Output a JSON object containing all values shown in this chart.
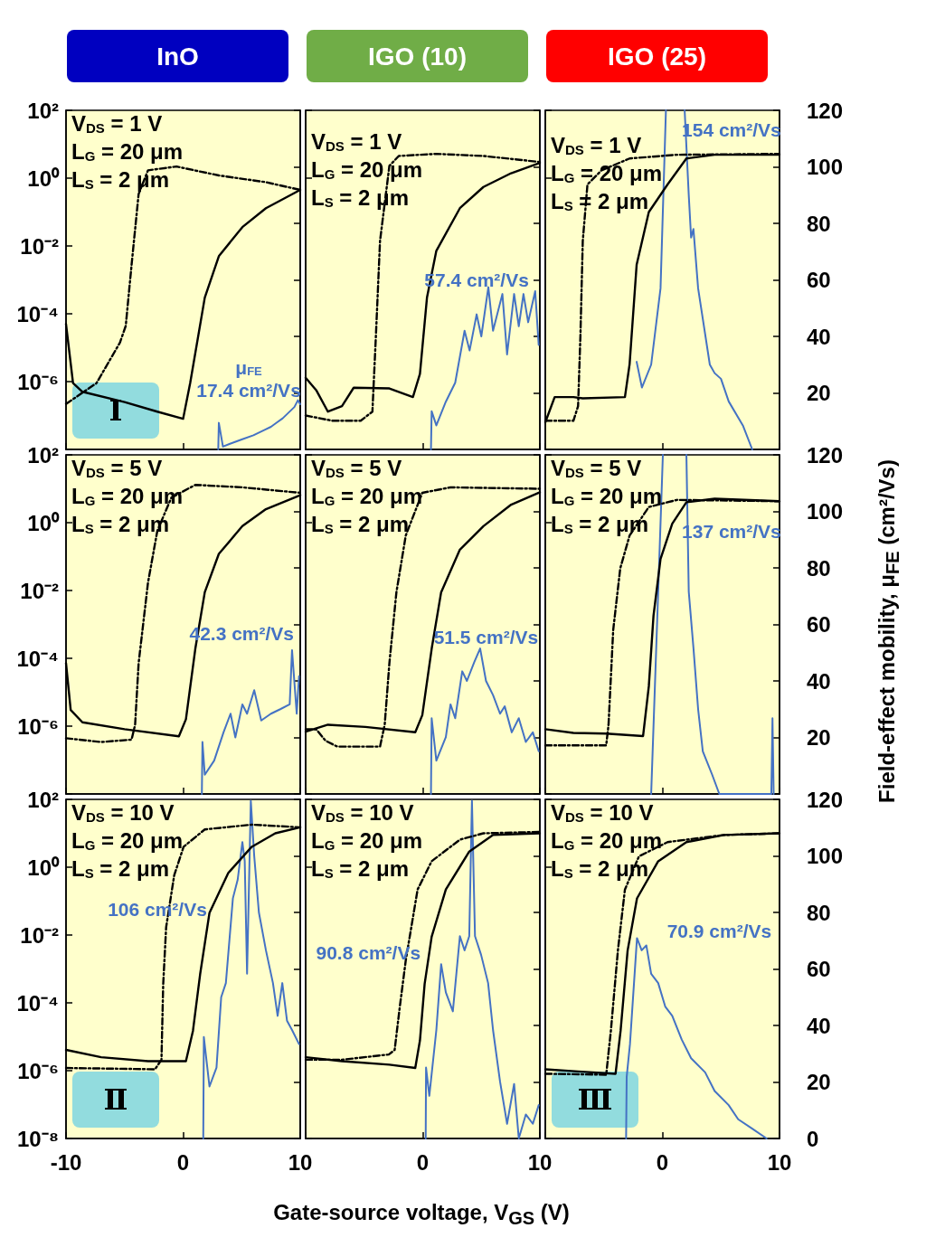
{
  "chart_data": [
    {
      "type": "line",
      "title": "InO",
      "log": "y",
      "marker": "none",
      "line_style": "solid",
      "tick_labels": "y",
      "annotations": [
        "V$_{DS}$ = 1 V",
        "L$_{G}$ = 20 μm",
        "L$_{S}$ = 2 μm",
        "μ$_{FE}$",
        "17.4 cm²/Vs"
      ],
      "subtitle": "Ⅰ",
      "xlim": [
        -10,
        10
      ],
      "ylim": [
        1e-08,
        100
      ],
      "yticks": [
        {
          "value": 100,
          "label": "10²"
        },
        {
          "value": 1,
          "label": "10⁰"
        },
        {
          "value": 0.01,
          "label": "10⁻²"
        },
        {
          "value": 0.0001,
          "label": "10⁻⁴"
        },
        {
          "value": 1e-06,
          "label": "10⁻⁶"
        },
        {
          "value": 1e-08,
          "label": null
        }
      ],
      "y2lim": [
        0,
        120
      ],
      "series": [
        {
          "color": "#000000",
          "x": [
            -10,
            -9.4,
            -8.6,
            -5,
            -2.2,
            0,
            0.6,
            1.85,
            3.05,
            5.06,
            7.07,
            10
          ],
          "values": [
            5e-05,
            9e-07,
            5e-07,
            2.5e-07,
            1.3e-07,
            8e-08,
            9e-07,
            0.0003,
            0.005,
            0.036,
            0.13,
            0.45
          ]
        },
        {
          "color": "#000000",
          "line_style": "dashed",
          "x": [
            -10,
            -7.4,
            -5.4,
            -4.9,
            -4.4,
            -3.8,
            -3,
            -0.56,
            3.05,
            7.07,
            10
          ],
          "values": [
            2.2e-07,
            9e-07,
            1.4e-05,
            4.4e-05,
            0.0028,
            0.34,
            1.7,
            2.2,
            1.2,
            0.76,
            0.45
          ]
        },
        {
          "color": "#4472c4",
          "axis": "y2",
          "x": [
            3.0,
            3.05,
            3.4,
            4,
            5,
            6,
            7,
            7.5,
            8,
            8.5,
            9,
            9.5,
            9.8,
            10
          ],
          "values": [
            0,
            9.4,
            1,
            2,
            3.5,
            5,
            7,
            8,
            9.5,
            11,
            13,
            15,
            17.4,
            16
          ]
        }
      ]
    },
    {
      "type": "line",
      "title": "IGO (10)",
      "log": "y",
      "marker": "none",
      "line_style": "solid",
      "tick_labels": false,
      "annotations": [
        "V$_{DS}$ = 1 V",
        "L$_{G}$ = 20 μm",
        "L$_{S}$ = 2 μm",
        "57.4 cm²/Vs"
      ],
      "xlim": [
        -10,
        10
      ],
      "ylim": [
        1e-08,
        100
      ],
      "y2lim": [
        0,
        120
      ],
      "series": [
        {
          "color": "#000000",
          "x": [
            -10,
            -9.1,
            -8.1,
            -6.9,
            -5.9,
            -2.85,
            -0.84,
            -0.24,
            0.36,
            1.16,
            3.17,
            5.18,
            7.55,
            10
          ],
          "values": [
            1.3e-06,
            5.6e-07,
            1.3e-07,
            1.9e-07,
            6.6e-07,
            6.3e-07,
            3.5e-07,
            1.7e-06,
            0.0003,
            0.0072,
            0.13,
            0.55,
            1.4,
            2.8
          ]
        },
        {
          "color": "#000000",
          "line_style": "dashed",
          "x": [
            -10,
            -7.7,
            -5.3,
            -4.3,
            -4,
            -3.65,
            -2.85,
            -2.05,
            1.16,
            5.2,
            10
          ],
          "values": [
            1e-07,
            7e-08,
            7e-08,
            1.3e-07,
            2.3e-05,
            0.014,
            2.3,
            4.5,
            5.2,
            4.5,
            3
          ]
        },
        {
          "color": "#4472c4",
          "axis": "y2",
          "x": [
            0.7,
            0.76,
            1.16,
            1.97,
            2.77,
            3.57,
            4,
            4.6,
            5,
            5.6,
            6,
            6.8,
            7.2,
            7.8,
            8.2,
            8.6,
            9,
            9.6,
            9.9
          ],
          "values": [
            0,
            13.5,
            8.5,
            16.9,
            23.6,
            42,
            35,
            47.8,
            40,
            57.4,
            42,
            55,
            33.6,
            55,
            43.6,
            55,
            45,
            56,
            37
          ]
        }
      ]
    },
    {
      "type": "line",
      "title": "IGO (25)",
      "log": "y",
      "marker": "none",
      "line_style": "solid",
      "tick_labels": "y2",
      "annotations": [
        "V$_{DS}$ = 1 V",
        "L$_{G}$ = 20 μm",
        "L$_{S}$ = 2 μm",
        "154 cm²/Vs"
      ],
      "xlim": [
        -10,
        10
      ],
      "ylim": [
        1e-08,
        100
      ],
      "y2lim": [
        0,
        120
      ],
      "y2ticks": [
        {
          "value": 0,
          "label": null
        },
        20,
        40,
        60,
        80,
        100,
        120
      ],
      "series": [
        {
          "color": "#000000",
          "x": [
            -10,
            -9.2,
            -7.6,
            -6.8,
            -3.2,
            -2.8,
            -2.2,
            -1.16,
            0.44,
            2.05,
            4.46,
            10
          ],
          "values": [
            6.3e-08,
            3.5e-07,
            3.5e-07,
            3.2e-07,
            3.5e-07,
            3.3e-06,
            0.0028,
            0.1,
            0.65,
            3.8,
            4.9,
            4.9
          ]
        },
        {
          "color": "#000000",
          "line_style": "dashed",
          "x": [
            -10,
            -7.6,
            -7.2,
            -7,
            -6.8,
            -6.4,
            -5.2,
            -2.8,
            1.25,
            10
          ],
          "values": [
            7e-08,
            7e-08,
            1.9e-07,
            2.3e-05,
            0.014,
            0.65,
            1.7,
            3.8,
            4.9,
            5.2
          ]
        },
        {
          "color": "#4472c4",
          "axis": "y2",
          "x": [
            -2.2,
            -1.75,
            -0.96,
            -0.16,
            0.3,
            0.8,
            1.9,
            2.25,
            2.45,
            2.65,
            3.05,
            4.05,
            4.46,
            5,
            5.66,
            6.87,
            7.67
          ],
          "values": [
            31,
            21.9,
            30,
            57,
            120,
            null,
            120,
            90,
            75,
            78,
            57,
            30,
            27,
            25,
            17,
            8.5,
            0
          ]
        }
      ]
    },
    {
      "type": "line",
      "log": "y",
      "marker": "none",
      "line_style": "solid",
      "tick_labels": "y",
      "annotations": [
        "V$_{DS}$ = 5 V",
        "L$_{G}$ = 20 μm",
        "L$_{S}$ = 2 μm",
        "42.3 cm²/Vs"
      ],
      "xlim": [
        -10,
        10
      ],
      "ylim": [
        1e-08,
        100
      ],
      "yticks": [
        {
          "value": 100,
          "label": "10²"
        },
        {
          "value": 1,
          "label": "10⁰"
        },
        {
          "value": 0.01,
          "label": "10⁻²"
        },
        {
          "value": 0.0001,
          "label": "10⁻⁴"
        },
        {
          "value": 1e-06,
          "label": "10⁻⁶"
        },
        {
          "value": 1e-08,
          "label": null
        }
      ],
      "y2lim": [
        0,
        120
      ],
      "series": [
        {
          "color": "#000000",
          "x": [
            -10,
            -9.6,
            -8.6,
            -5,
            -0.36,
            0.24,
            1.04,
            1.85,
            3.05,
            5.06,
            7.07,
            10
          ],
          "values": [
            7.2e-05,
            3e-06,
            1.3e-06,
            8.1e-07,
            5e-07,
            1.6e-06,
            0.00019,
            0.0089,
            0.12,
            0.79,
            2.5,
            6.5
          ]
        },
        {
          "color": "#000000",
          "line_style": "dashed",
          "x": [
            -10,
            -7,
            -4.4,
            -4.1,
            -3.8,
            -3,
            -2.2,
            -1,
            1.04,
            5.06,
            10
          ],
          "values": [
            4.4e-07,
            3.4e-07,
            4e-07,
            1.1e-06,
            7.2e-05,
            0.017,
            0.58,
            5.5,
            13,
            11,
            7.6
          ]
        },
        {
          "color": "#4472c4",
          "axis": "y2",
          "x": [
            1.6,
            1.65,
            1.85,
            2.65,
            3.45,
            4.05,
            4.46,
            5.06,
            5.46,
            6.07,
            6.67,
            7.5,
            8.3,
            9.1,
            9.3,
            9.7,
            9.9
          ],
          "values": [
            0,
            18.4,
            6.8,
            11.8,
            21.8,
            28.4,
            20,
            31.7,
            28.4,
            36.7,
            26,
            28.4,
            30,
            31.7,
            50.9,
            28.4,
            41.7
          ]
        }
      ]
    },
    {
      "type": "line",
      "log": "y",
      "marker": "none",
      "line_style": "solid",
      "tick_labels": false,
      "annotations": [
        "V$_{DS}$ = 5 V",
        "L$_{G}$ = 20 μm",
        "L$_{S}$ = 2 μm",
        "51.5 cm²/Vs"
      ],
      "xlim": [
        -10,
        10
      ],
      "ylim": [
        1e-08,
        100
      ],
      "y2lim": [
        0,
        120
      ],
      "series": [
        {
          "color": "#000000",
          "x": [
            -10,
            -8.1,
            -4.9,
            -0.64,
            -0.04,
            0.76,
            1.57,
            3.17,
            5.18,
            7.55,
            10
          ],
          "values": [
            6.9e-07,
            1.1e-06,
            9.5e-07,
            6.6e-07,
            2.1e-06,
            0.00019,
            0.0089,
            0.16,
            0.79,
            3.4,
            7.9
          ]
        },
        {
          "color": "#000000",
          "line_style": "dashed",
          "x": [
            -10,
            -9.1,
            -8.3,
            -7.3,
            -3.65,
            -3.25,
            -2.85,
            -2.25,
            -1.45,
            -0.04,
            2.37,
            10
          ],
          "values": [
            8.1e-07,
            8.1e-07,
            3.7e-07,
            2.5e-07,
            2.5e-07,
            1.1e-06,
            7.2e-05,
            0.0089,
            0.42,
            7.6,
            11,
            10
          ]
        },
        {
          "color": "#4472c4",
          "axis": "y2",
          "x": [
            0.7,
            0.76,
            1.16,
            1.97,
            2.37,
            2.77,
            3.37,
            3.77,
            4.4,
            4.9,
            5.4,
            6,
            6.6,
            7,
            7.6,
            8.2,
            8.8,
            9.4,
            9.9
          ],
          "values": [
            0,
            26.8,
            11.8,
            20.1,
            31.7,
            26.8,
            43.4,
            40,
            46.7,
            51.5,
            40,
            35,
            28.4,
            31,
            21.8,
            26.8,
            18.4,
            21.8,
            15.1
          ]
        }
      ]
    },
    {
      "type": "line",
      "log": "y",
      "marker": "none",
      "line_style": "solid",
      "tick_labels": "y2",
      "y2label": "Field-effect mobility,  μ$_{FE}$ (cm²/Vs)",
      "annotations": [
        "V$_{DS}$ = 5 V",
        "L$_{G}$ = 20 μm",
        "L$_{S}$ = 2 μm",
        "137 cm²/Vs"
      ],
      "xlim": [
        -10,
        10
      ],
      "ylim": [
        1e-08,
        100
      ],
      "y2lim": [
        0,
        120
      ],
      "y2ticks": [
        {
          "value": 0,
          "label": null
        },
        20,
        40,
        60,
        80,
        100,
        120
      ],
      "series": [
        {
          "color": "#000000",
          "x": [
            -10,
            -7.6,
            -4.8,
            -1.65,
            -1.16,
            -0.76,
            -0.16,
            0.84,
            2.05,
            4.46,
            10
          ],
          "values": [
            8.1e-07,
            6.3e-07,
            6e-07,
            5.1e-07,
            1.5e-05,
            0.0018,
            0.085,
            0.93,
            4,
            5.1,
            4.3
          ]
        },
        {
          "color": "#000000",
          "line_style": "dashed",
          "x": [
            -10,
            -4.8,
            -4.6,
            -4.2,
            -3.6,
            -2.8,
            -1.16,
            1.25,
            10
          ],
          "values": [
            2.7e-07,
            2.7e-07,
            1.1e-06,
            0.00069,
            0.045,
            0.42,
            2.9,
            4.7,
            4.3
          ]
        },
        {
          "color": "#4472c4",
          "axis": "y2",
          "x": [
            -0.96,
            -0.36,
            0.04,
            1,
            2.05,
            2.25,
            2.65,
            3.05,
            3.45,
            4.25,
            4.86,
            9.3,
            9.4,
            9.5
          ],
          "values": [
            0,
            71.6,
            120,
            null,
            120,
            71.6,
            51.7,
            30,
            15.1,
            6.8,
            0,
            0,
            26.8,
            0
          ]
        }
      ]
    },
    {
      "type": "line",
      "log": "y",
      "marker": "none",
      "line_style": "solid",
      "tick_labels": "xy",
      "annotations": [
        "V$_{DS}$ = 10 V",
        "L$_{G}$ = 20 μm",
        "L$_{S}$ = 2 μm",
        "106 cm²/Vs"
      ],
      "subtitle": "Ⅱ",
      "xlim": [
        -10,
        10
      ],
      "xticks": [
        -10,
        0,
        10
      ],
      "ylim": [
        1e-08,
        100
      ],
      "yticks": [
        {
          "value": 100,
          "label": "10²"
        },
        {
          "value": 1,
          "label": "10⁰"
        },
        {
          "value": 0.01,
          "label": "10⁻²"
        },
        {
          "value": 0.0001,
          "label": "10⁻⁴"
        },
        {
          "value": 1e-06,
          "label": "10⁻⁶"
        },
        {
          "value": 1e-08,
          "label": "10⁻⁸"
        }
      ],
      "y2lim": [
        0,
        120
      ],
      "series": [
        {
          "color": "#000000",
          "x": [
            -10,
            -7,
            -3,
            0.24,
            0.84,
            1.45,
            2.25,
            3.86,
            5.86,
            7.87,
            10
          ],
          "values": [
            4.1e-06,
            2.5e-06,
            1.9e-06,
            1.9e-06,
            1.5e-05,
            0.00069,
            0.045,
            0.68,
            4,
            10,
            15
          ]
        },
        {
          "color": "#000000",
          "line_style": "dashed",
          "x": [
            -10,
            -2.4,
            -1.85,
            -1.7,
            -1.45,
            -0.76,
            0.04,
            1.85,
            5.86,
            10
          ],
          "values": [
            1.2e-06,
            1.1e-06,
            2.1e-06,
            0.00036,
            0.017,
            0.58,
            4,
            13,
            18,
            15
          ]
        },
        {
          "color": "#4472c4",
          "axis": "y2",
          "x": [
            1.72,
            1.77,
            2.25,
            2.85,
            3.25,
            3.65,
            4.25,
            4.66,
            5.06,
            5.26,
            5.46,
            5.78,
            6.07,
            6.47,
            7.07,
            7.67,
            8.07,
            8.47,
            8.87,
            9.3,
            9.9
          ],
          "values": [
            0,
            35.9,
            18.4,
            25.1,
            50,
            55,
            85,
            91.6,
            104.9,
            98.2,
            58.3,
            119.5,
            100,
            80,
            66.6,
            55,
            43.4,
            55,
            41.7,
            38.4,
            33.4
          ]
        }
      ]
    },
    {
      "type": "line",
      "log": "y",
      "marker": "none",
      "line_style": "solid",
      "tick_labels": "x",
      "xlabel": "Gate-source voltage, V$_{GS}$ (V)",
      "annotations": [
        "V$_{DS}$ = 10 V",
        "L$_{G}$ = 20 μm",
        "L$_{S}$ = 2 μm",
        "90.8 cm²/Vs"
      ],
      "xlim": [
        -10,
        10
      ],
      "xticks": [
        {
          "value": -10,
          "label": null
        },
        0,
        10
      ],
      "ylim": [
        1e-08,
        100
      ],
      "y2lim": [
        0,
        120
      ],
      "series": [
        {
          "color": "#000000",
          "x": [
            -10,
            -6.9,
            -2.85,
            -0.64,
            -0.24,
            0.16,
            0.76,
            1.97,
            3.97,
            5.98,
            10
          ],
          "values": [
            2.5e-06,
            1.9e-06,
            1.5e-06,
            1.2e-06,
            7.8e-06,
            0.00036,
            0.0089,
            0.22,
            2.9,
            8.9,
            10
          ]
        },
        {
          "color": "#000000",
          "line_style": "dashed",
          "x": [
            -10,
            -6.9,
            -2.9,
            -2.4,
            -1.97,
            -1.45,
            -0.44,
            0.76,
            3.17,
            5.18,
            10
          ],
          "values": [
            2.1e-06,
            2.1e-06,
            3e-06,
            4.1e-06,
            7.2e-05,
            0.0018,
            0.22,
            1.5,
            6.5,
            10,
            11
          ]
        },
        {
          "color": "#4472c4",
          "axis": "y2",
          "x": [
            0.25,
            0.28,
            0.56,
            1.16,
            1.57,
            1.97,
            2.57,
            3.17,
            3.57,
            3.97,
            4.2,
            4.46,
            4.98,
            5.58,
            6,
            6.6,
            7.2,
            7.8,
            8.2,
            8.8,
            9.4,
            9.9
          ],
          "values": [
            0,
            25.1,
            15.1,
            38.4,
            61.7,
            51.7,
            45,
            71.6,
            66.6,
            71.6,
            119.5,
            71.6,
            65,
            55,
            38.4,
            20.1,
            5.2,
            19.3,
            0,
            8.5,
            5.2,
            11.8
          ]
        }
      ]
    },
    {
      "type": "line",
      "log": "y",
      "marker": "none",
      "line_style": "solid",
      "tick_labels": "xy2",
      "annotations": [
        "V$_{DS}$ = 10 V",
        "L$_{G}$ = 20 μm",
        "L$_{S}$ = 2 μm",
        "70.9 cm²/Vs"
      ],
      "subtitle": "Ⅲ",
      "xlim": [
        -10,
        10
      ],
      "xticks": [
        {
          "value": -10,
          "label": null
        },
        0,
        10
      ],
      "ylim": [
        1e-08,
        100
      ],
      "y2lim": [
        0,
        120
      ],
      "y2ticks": [
        0,
        20,
        40,
        60,
        80,
        100,
        120
      ],
      "series": [
        {
          "color": "#000000",
          "x": [
            -10,
            -7.2,
            -4,
            -3.57,
            -2.97,
            -2.17,
            -0.36,
            2.05,
            5.26,
            10
          ],
          "values": [
            1.1e-06,
            9.5e-07,
            8.1e-07,
            1.5e-05,
            0.0035,
            0.12,
            1.5,
            5.5,
            8.9,
            10
          ]
        },
        {
          "color": "#000000",
          "line_style": "dashed",
          "x": [
            -10,
            -4.8,
            -4.4,
            -3.8,
            -3.2,
            -2,
            0.44,
            5.26,
            10
          ],
          "values": [
            8.1e-07,
            7.6e-07,
            1.5e-05,
            0.0035,
            0.22,
            2.1,
            5.5,
            8.9,
            10
          ]
        },
        {
          "color": "#4472c4",
          "axis": "y2",
          "x": [
            -3.1,
            -3.05,
            -2.77,
            -2.17,
            -1.77,
            -1.37,
            -0.96,
            -0.36,
            0.24,
            0.84,
            1.65,
            2.45,
            3.65,
            4.46,
            5.66,
            6.47,
            7.67,
            8.9
          ],
          "values": [
            0,
            21.8,
            33.4,
            70.9,
            66.6,
            68.3,
            58.3,
            55,
            46.7,
            43.4,
            35,
            28.4,
            23.4,
            16.8,
            11.8,
            6.8,
            3.5,
            0
          ]
        }
      ]
    }
  ]
}
